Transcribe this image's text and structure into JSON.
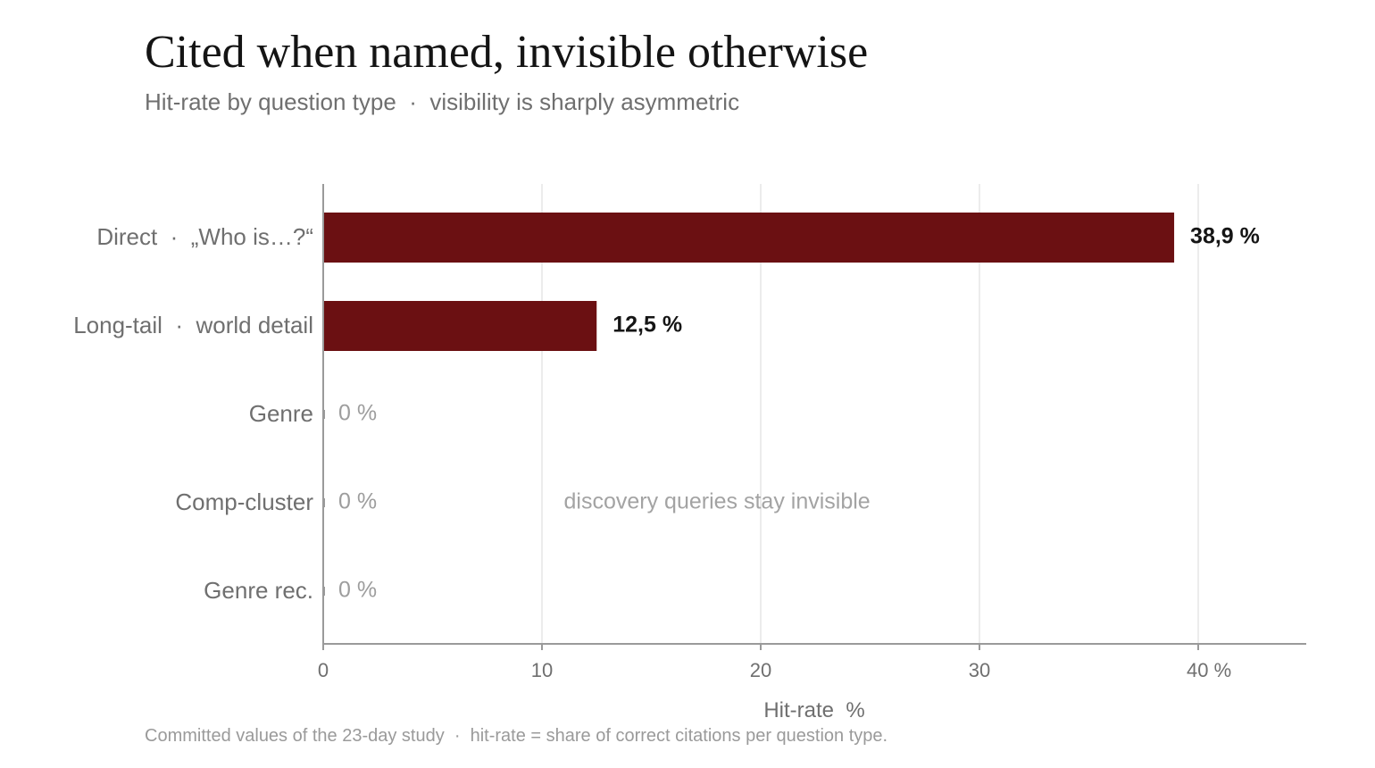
{
  "title": "Cited when named, invisible otherwise",
  "subtitle": "Hit-rate by question type  ·  visibility is sharply asymmetric",
  "footnote": "Committed values of the 23-day study  ·  hit-rate = share of correct citations per question type.",
  "colors": {
    "bar": "#6b1012",
    "value_label_strong": "#151515",
    "value_label_zero": "#9d9d9d",
    "grid": "#e6e6e6",
    "axis": "#9a9a9a"
  },
  "chart_data": {
    "type": "bar",
    "orientation": "horizontal",
    "categories": [
      "Direct  ·  „Who is…?“",
      "Long-tail  ·  world detail",
      "Genre",
      "Comp-cluster",
      "Genre rec."
    ],
    "values": [
      38.9,
      12.5,
      0,
      0,
      0
    ],
    "value_labels": [
      "38,9 %",
      "12,5 %",
      "0 %",
      "0 %",
      "0 %"
    ],
    "xlabel": "Hit-rate  %",
    "xlim": [
      0,
      45
    ],
    "xticks": [
      0,
      10,
      20,
      30,
      40
    ],
    "xtick_labels": [
      "0",
      "10",
      "20",
      "30",
      "40 %"
    ],
    "grid": true,
    "annotation": {
      "text": "discovery queries stay invisible",
      "x": 11,
      "category_index": 3
    }
  }
}
